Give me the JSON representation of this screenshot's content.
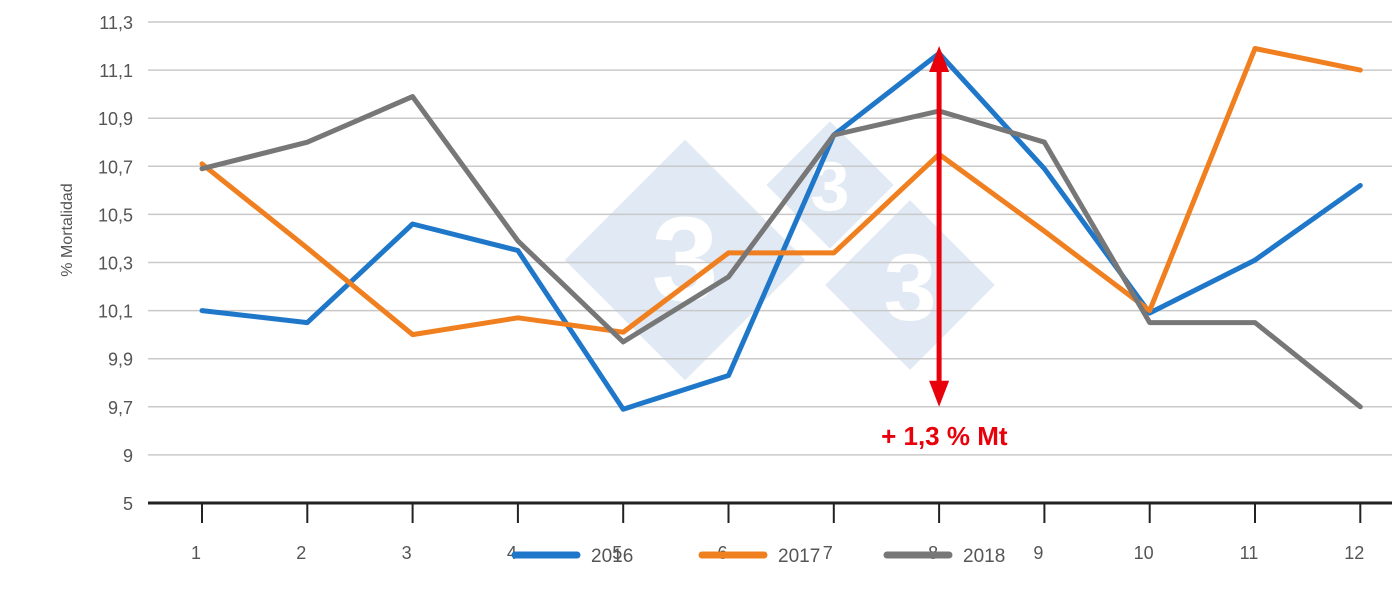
{
  "chart_data": {
    "type": "line",
    "ylabel": "% Mortalidad",
    "xlabel": "",
    "categories": [
      "1",
      "2",
      "3",
      "4",
      "5",
      "6",
      "7",
      "8",
      "9",
      "10",
      "11",
      "12"
    ],
    "y_ticks": [
      "5",
      "9",
      "9,7",
      "9,9",
      "10,1",
      "10,3",
      "10,5",
      "10,7",
      "10,9",
      "11,1",
      "11,3"
    ],
    "series": [
      {
        "name": "2016",
        "color": "#1f77c9",
        "values": [
          10.1,
          10.05,
          10.46,
          10.35,
          9.69,
          9.83,
          10.83,
          11.17,
          10.69,
          10.09,
          10.31,
          10.62
        ]
      },
      {
        "name": "2017",
        "color": "#f07f1f",
        "values": [
          10.71,
          10.36,
          10.0,
          10.07,
          10.01,
          10.34,
          10.34,
          10.75,
          10.43,
          10.1,
          11.19,
          11.1
        ]
      },
      {
        "name": "2018",
        "color": "#777777",
        "values": [
          10.69,
          10.8,
          10.99,
          10.39,
          9.97,
          10.24,
          10.83,
          10.93,
          10.8,
          10.05,
          10.05,
          9.7
        ]
      }
    ],
    "annotation": {
      "text": "+ 1,3 % Mt",
      "category": "8",
      "from": 9.7,
      "to": 11.2,
      "color": "#e8000b"
    },
    "grid": true,
    "legend_position": "bottom"
  }
}
